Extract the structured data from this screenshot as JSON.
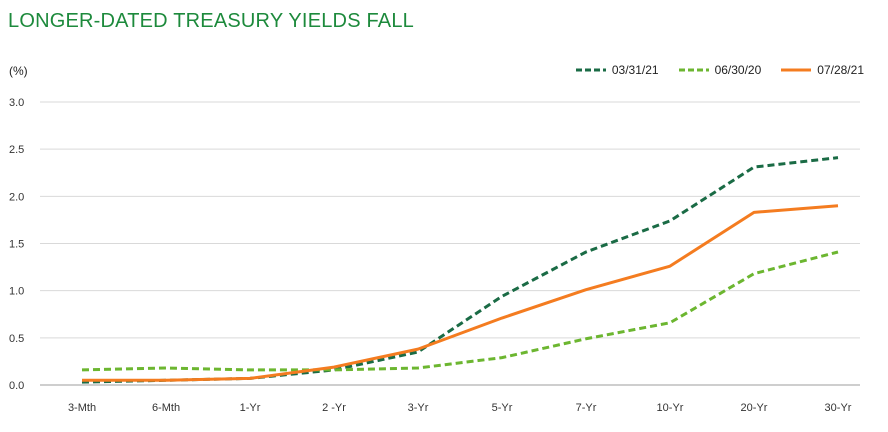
{
  "title": "LONGER-DATED TREASURY YIELDS FALL",
  "colors": {
    "title": "#1d8a3c",
    "series_03_31_21": "#1a6b45",
    "series_06_30_20": "#6cb630",
    "series_07_28_21": "#f47c20",
    "grid": "#d9d9d9"
  },
  "chart_data": {
    "type": "line",
    "title": "LONGER-DATED TREASURY YIELDS FALL",
    "ylabel": "(%)",
    "xlabel": "",
    "ylim": [
      0,
      3.0
    ],
    "yticks": [
      "0.0",
      "0.5",
      "1.0",
      "1.5",
      "2.0",
      "2.5",
      "3.0"
    ],
    "grid": "horizontal",
    "legend_position": "top-right",
    "categories": [
      "3-Mth",
      "6-Mth",
      "1-Yr",
      "2 -Yr",
      "3-Yr",
      "5-Yr",
      "7-Yr",
      "10-Yr",
      "20-Yr",
      "30-Yr"
    ],
    "series": [
      {
        "name": "03/31/21",
        "style": "dashed",
        "color": "#1a6b45",
        "values": [
          0.03,
          0.05,
          0.07,
          0.16,
          0.35,
          0.94,
          1.41,
          1.74,
          2.31,
          2.41
        ]
      },
      {
        "name": "06/30/20",
        "style": "dashed",
        "color": "#6cb630",
        "values": [
          0.16,
          0.18,
          0.16,
          0.16,
          0.18,
          0.29,
          0.49,
          0.66,
          1.18,
          1.41
        ]
      },
      {
        "name": "07/28/21",
        "style": "solid",
        "color": "#f47c20",
        "values": [
          0.05,
          0.05,
          0.07,
          0.19,
          0.38,
          0.71,
          1.01,
          1.26,
          1.83,
          1.9
        ]
      }
    ]
  }
}
